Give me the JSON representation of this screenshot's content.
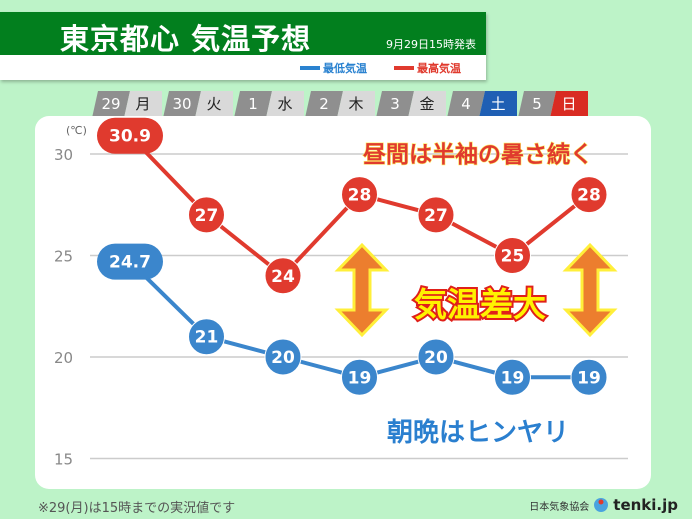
{
  "header": {
    "title": "東京都心 気温予想",
    "issued": "9月29日15時発表"
  },
  "legend": [
    {
      "label": "最低気温",
      "color": "#2a82d0"
    },
    {
      "label": "最高気温",
      "color": "#e03a2e"
    }
  ],
  "days": [
    {
      "num": "29",
      "dow": "月"
    },
    {
      "num": "30",
      "dow": "火"
    },
    {
      "num": "1",
      "dow": "水"
    },
    {
      "num": "2",
      "dow": "木"
    },
    {
      "num": "3",
      "dow": "金"
    },
    {
      "num": "4",
      "dow": "土",
      "color": "#1f5fb4"
    },
    {
      "num": "5",
      "dow": "日",
      "color": "#d92b22"
    }
  ],
  "chart_data": {
    "type": "line",
    "unit_label": "(℃)",
    "categories": [
      "29 月",
      "30 火",
      "1 水",
      "2 木",
      "3 金",
      "4 土",
      "5 日"
    ],
    "ylim": [
      15,
      31
    ],
    "yticks": [
      15,
      20,
      25,
      30
    ],
    "grid": true,
    "series": [
      {
        "name": "最高気温",
        "color": "#e03a2e",
        "values": [
          30.9,
          27,
          24,
          28,
          27,
          25,
          28
        ],
        "labels": [
          "30.9",
          "27",
          "24",
          "28",
          "27",
          "25",
          "28"
        ]
      },
      {
        "name": "最低気温",
        "color": "#3b86cc",
        "values": [
          24.7,
          21,
          20,
          19,
          20,
          19,
          19
        ],
        "labels": [
          "24.7",
          "21",
          "20",
          "19",
          "20",
          "19",
          "19"
        ]
      }
    ],
    "annotations": {
      "day": "昼間は半袖の暑さ続く",
      "diff": "気温差大",
      "night": "朝晩はヒンヤリ"
    }
  },
  "footer": {
    "note": "※29(月)は15時までの実況値です",
    "org": "日本気象協会",
    "brand": "tenki.jp"
  }
}
